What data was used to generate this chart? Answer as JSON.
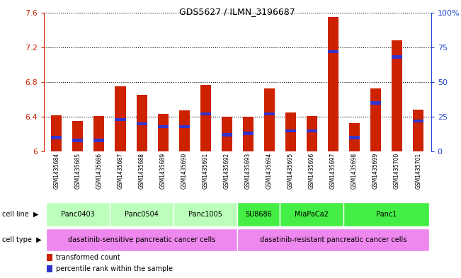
{
  "title": "GDS5627 / ILMN_3196687",
  "samples": [
    "GSM1435684",
    "GSM1435685",
    "GSM1435686",
    "GSM1435687",
    "GSM1435688",
    "GSM1435689",
    "GSM1435690",
    "GSM1435691",
    "GSM1435692",
    "GSM1435693",
    "GSM1435694",
    "GSM1435695",
    "GSM1435696",
    "GSM1435697",
    "GSM1435698",
    "GSM1435699",
    "GSM1435700",
    "GSM1435701"
  ],
  "transformed_counts": [
    6.42,
    6.35,
    6.41,
    6.75,
    6.65,
    6.43,
    6.47,
    6.77,
    6.4,
    6.4,
    6.73,
    6.45,
    6.41,
    7.55,
    6.33,
    6.73,
    7.28,
    6.48
  ],
  "percentile_ranks": [
    10,
    8,
    8,
    23,
    20,
    18,
    18,
    27,
    12,
    13,
    27,
    15,
    15,
    72,
    10,
    35,
    68,
    22
  ],
  "bar_color": "#CC2200",
  "percentile_color": "#3333CC",
  "ymin": 6.0,
  "ymax": 7.6,
  "yticks": [
    6.0,
    6.4,
    6.8,
    7.2,
    7.6
  ],
  "ytick_labels": [
    "6",
    "6.4",
    "6.8",
    "7.2",
    "7.6"
  ],
  "right_yticks": [
    0,
    25,
    50,
    75,
    100
  ],
  "right_ytick_labels": [
    "0",
    "25",
    "50",
    "75",
    "100%"
  ],
  "cell_lines": [
    {
      "label": "Panc0403",
      "start": 0,
      "end": 2,
      "color": "#BBFFBB"
    },
    {
      "label": "Panc0504",
      "start": 3,
      "end": 5,
      "color": "#BBFFBB"
    },
    {
      "label": "Panc1005",
      "start": 6,
      "end": 8,
      "color": "#BBFFBB"
    },
    {
      "label": "SU8686",
      "start": 9,
      "end": 10,
      "color": "#44EE44"
    },
    {
      "label": "MiaPaCa2",
      "start": 11,
      "end": 13,
      "color": "#44EE44"
    },
    {
      "label": "Panc1",
      "start": 14,
      "end": 17,
      "color": "#44EE44"
    }
  ],
  "cell_types": [
    {
      "label": "dasatinib-sensitive pancreatic cancer cells",
      "start": 0,
      "end": 8,
      "color": "#EE88EE"
    },
    {
      "label": "dasatinib-resistant pancreatic cancer cells",
      "start": 9,
      "end": 17,
      "color": "#EE88EE"
    }
  ],
  "bar_width": 0.5,
  "legend_items": [
    {
      "label": "transformed count",
      "color": "#CC2200"
    },
    {
      "label": "percentile rank within the sample",
      "color": "#3333CC"
    }
  ],
  "plot_bg": "#FFFFFF",
  "tick_label_area_bg": "#D0D0D0",
  "left_axis_color": "#CC2200",
  "right_axis_color": "#2244CC"
}
